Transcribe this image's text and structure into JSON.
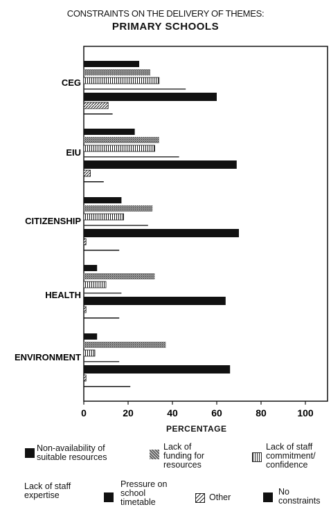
{
  "chart_data": {
    "type": "bar",
    "orientation": "horizontal",
    "title": "CONSTRAINTS ON THE DELIVERY OF THEMES:",
    "subtitle": "PRIMARY SCHOOLS",
    "xlabel": "PERCENTAGE",
    "xlim": [
      0,
      110
    ],
    "xticks": [
      0,
      20,
      40,
      60,
      80,
      100
    ],
    "categories": [
      "CEG",
      "EIU",
      "CITIZENSHIP",
      "HEALTH",
      "ENVIRONMENT"
    ],
    "series": [
      {
        "name": "Non-availability of suitable resources",
        "pattern": "black",
        "values": [
          25,
          23,
          17,
          6,
          6
        ]
      },
      {
        "name": "Lack of funding for resources",
        "pattern": "dots",
        "values": [
          30,
          34,
          31,
          32,
          37
        ]
      },
      {
        "name": "Lack of staff commitment/ confidence",
        "pattern": "vlines",
        "values": [
          34,
          32,
          18,
          10,
          5
        ]
      },
      {
        "name": "Lack of staff expertise",
        "pattern": "white",
        "values": [
          46,
          43,
          29,
          17,
          16
        ]
      },
      {
        "name": "Pressure on school timetable",
        "pattern": "black",
        "values": [
          60,
          69,
          70,
          64,
          66
        ]
      },
      {
        "name": "Other",
        "pattern": "diag",
        "values": [
          11,
          3,
          1,
          1,
          1
        ]
      },
      {
        "name": "No constraints",
        "pattern": "black",
        "values": [
          13,
          9,
          16,
          16,
          21
        ]
      }
    ],
    "legend_position": "bottom"
  },
  "legend": [
    {
      "label_lines": [
        "Non-availability of",
        "suitable resources"
      ],
      "swatch": "black"
    },
    {
      "label_lines": [
        "Lack of",
        "funding for",
        "resources"
      ],
      "swatch": "dots"
    },
    {
      "label_lines": [
        "Lack of staff",
        "commitment/",
        "confidence"
      ],
      "swatch": "vlines"
    },
    {
      "label_lines": [
        "Lack of staff",
        "expertise"
      ],
      "swatch": "none"
    },
    {
      "label_lines": [
        "Pressure on",
        "school",
        "timetable"
      ],
      "swatch": "black"
    },
    {
      "label_lines": [
        "Other"
      ],
      "swatch": "diag"
    },
    {
      "label_lines": [
        "No",
        "constraints"
      ],
      "swatch": "black"
    }
  ]
}
